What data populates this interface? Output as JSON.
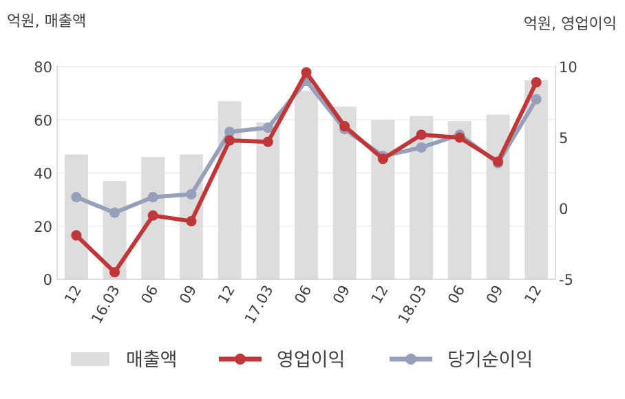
{
  "chart_data": {
    "type": "bar+line",
    "categories": [
      "12",
      "16.03",
      "06",
      "09",
      "12",
      "17.03",
      "06",
      "09",
      "12",
      "18.03",
      "06",
      "09",
      "12"
    ],
    "left_axis": {
      "label": "억원, 매출액",
      "ylim": [
        0,
        80
      ],
      "ticks": [
        0,
        20,
        40,
        60,
        80
      ]
    },
    "right_axis": {
      "label": "억원, 영업이익",
      "ylim": [
        -5,
        10
      ],
      "ticks": [
        -5,
        0,
        5,
        10
      ]
    },
    "series": [
      {
        "name": "매출액",
        "type": "bar",
        "axis": "left",
        "color": "#dddddd",
        "values": [
          47,
          37,
          46,
          47,
          67,
          59,
          71,
          65,
          60,
          61.5,
          59.5,
          62,
          75
        ]
      },
      {
        "name": "영업이익",
        "type": "line",
        "axis": "right",
        "color": "#c0373a",
        "values": [
          -1.9,
          -4.5,
          -0.5,
          -0.9,
          4.8,
          4.7,
          9.6,
          5.8,
          3.5,
          5.2,
          5.0,
          3.3,
          8.9
        ]
      },
      {
        "name": "당기순이익",
        "type": "line",
        "axis": "right",
        "color": "#96a0b9",
        "values": [
          0.8,
          -0.3,
          0.8,
          1.0,
          5.4,
          5.7,
          9.0,
          5.6,
          3.7,
          4.3,
          5.2,
          3.2,
          7.7
        ]
      }
    ],
    "grid": true,
    "legend_position": "bottom"
  }
}
